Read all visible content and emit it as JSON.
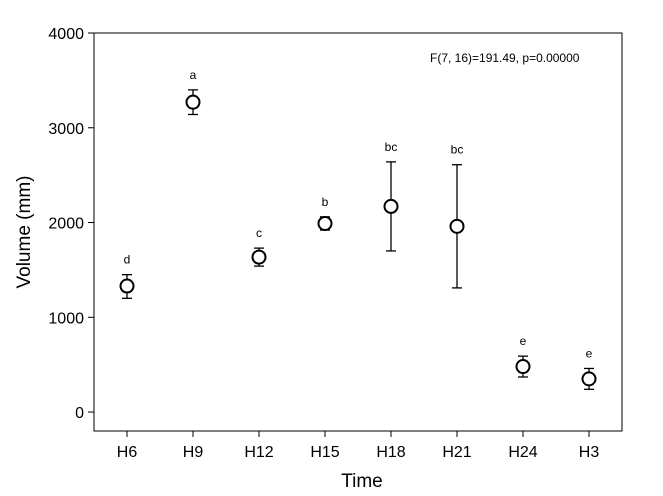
{
  "chart_data": {
    "type": "scatter",
    "categories": [
      "H6",
      "H9",
      "H12",
      "H15",
      "H18",
      "H21",
      "H24",
      "H3"
    ],
    "values": [
      1330,
      3270,
      1635,
      1990,
      2170,
      1960,
      480,
      350
    ],
    "error_low": [
      1200,
      3140,
      1540,
      1920,
      1700,
      1310,
      370,
      240
    ],
    "error_high": [
      1450,
      3400,
      1730,
      2060,
      2640,
      2610,
      590,
      460
    ],
    "group_letters": [
      "d",
      "a",
      "c",
      "b",
      "bc",
      "bc",
      "e",
      "e"
    ],
    "annotation": "F(7, 16)=191.49, p=0.00000",
    "xlabel": "Time",
    "ylabel": "Volume (mm)",
    "yticks": [
      0,
      1000,
      2000,
      3000,
      4000
    ],
    "ytick_labels": [
      "0",
      "1000",
      "2000",
      "3000",
      "4000"
    ],
    "ylim": [
      -200,
      4000
    ],
    "grid": false,
    "marker": "open-circle",
    "colors": {
      "marker_stroke": "#000000",
      "marker_fill": "#ffffff",
      "axis": "#000000"
    }
  }
}
